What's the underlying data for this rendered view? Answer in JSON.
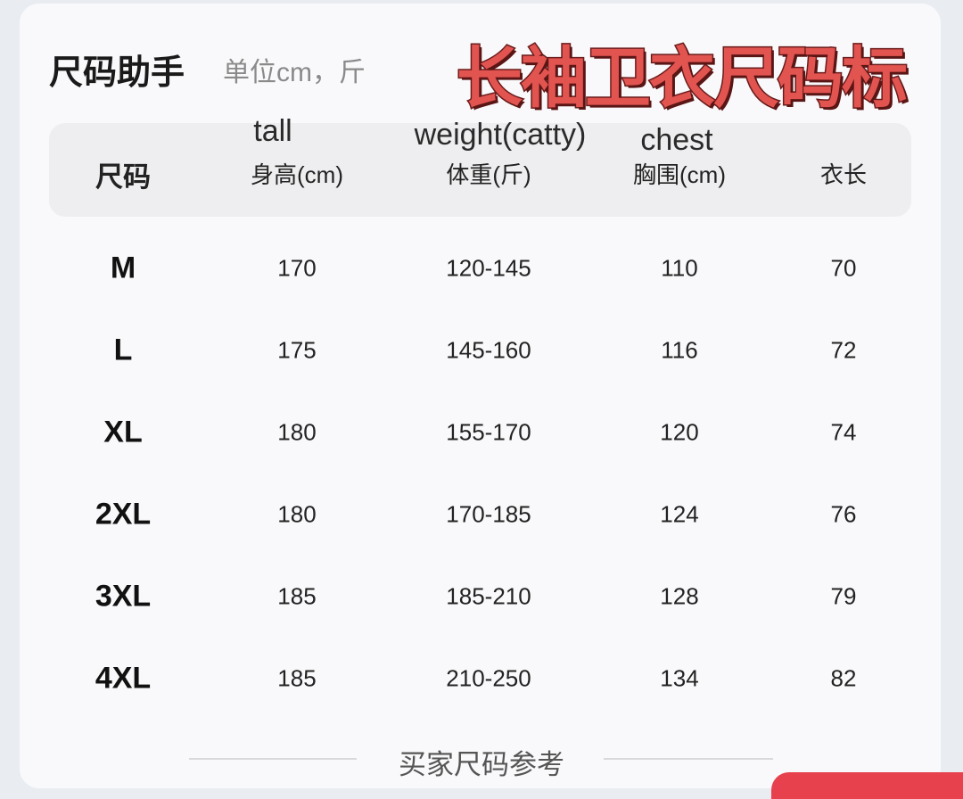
{
  "header": {
    "title": "尺码助手",
    "unit_note": "单位cm，斤",
    "overlay_title": "长袖卫衣尺码标"
  },
  "table": {
    "english_labels": [
      "tall",
      "weight(catty)",
      "chest"
    ],
    "columns": [
      "尺码",
      "身高(cm)",
      "体重(斤)",
      "胸围(cm)",
      "衣长"
    ],
    "rows": [
      [
        "M",
        "170",
        "120-145",
        "110",
        "70"
      ],
      [
        "L",
        "175",
        "145-160",
        "116",
        "72"
      ],
      [
        "XL",
        "180",
        "155-170",
        "120",
        "74"
      ],
      [
        "2XL",
        "180",
        "170-185",
        "124",
        "76"
      ],
      [
        "3XL",
        "185",
        "185-210",
        "128",
        "79"
      ],
      [
        "4XL",
        "185",
        "210-250",
        "134",
        "82"
      ]
    ]
  },
  "footer": {
    "section_title": "买家尺码参考"
  },
  "colors": {
    "overlay_red": "#e25450",
    "accent_red": "#e6414c"
  }
}
